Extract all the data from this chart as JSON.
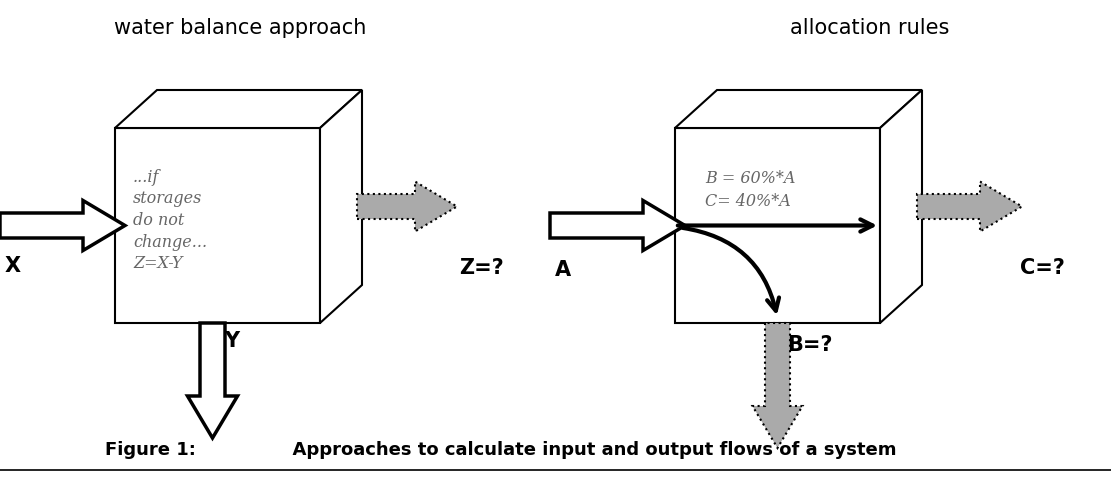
{
  "bg_color": "#ffffff",
  "fig_width": 11.11,
  "fig_height": 4.78,
  "left_title": "water balance approach",
  "right_title": "allocation rules",
  "left_box_text": "...if\nstorages\ndo not\nchange...\nZ=X-Y",
  "right_box_text": "B = 60%*A\nC= 40%*A",
  "figure_label": "Figure 1:",
  "figure_caption": "      Approaches to calculate input and output flows of a system",
  "label_X": "X",
  "label_Y": "Y",
  "label_Z": "Z=?",
  "label_A": "A",
  "label_B": "B=?",
  "label_C": "C=?",
  "left_box": [
    1.1,
    1.6,
    2.0,
    1.9,
    0.4,
    0.35
  ],
  "right_box": [
    6.7,
    1.6,
    2.0,
    1.9,
    0.4,
    0.35
  ],
  "gray_arrow_color": "#aaaaaa",
  "black_arrow_color": "#000000"
}
